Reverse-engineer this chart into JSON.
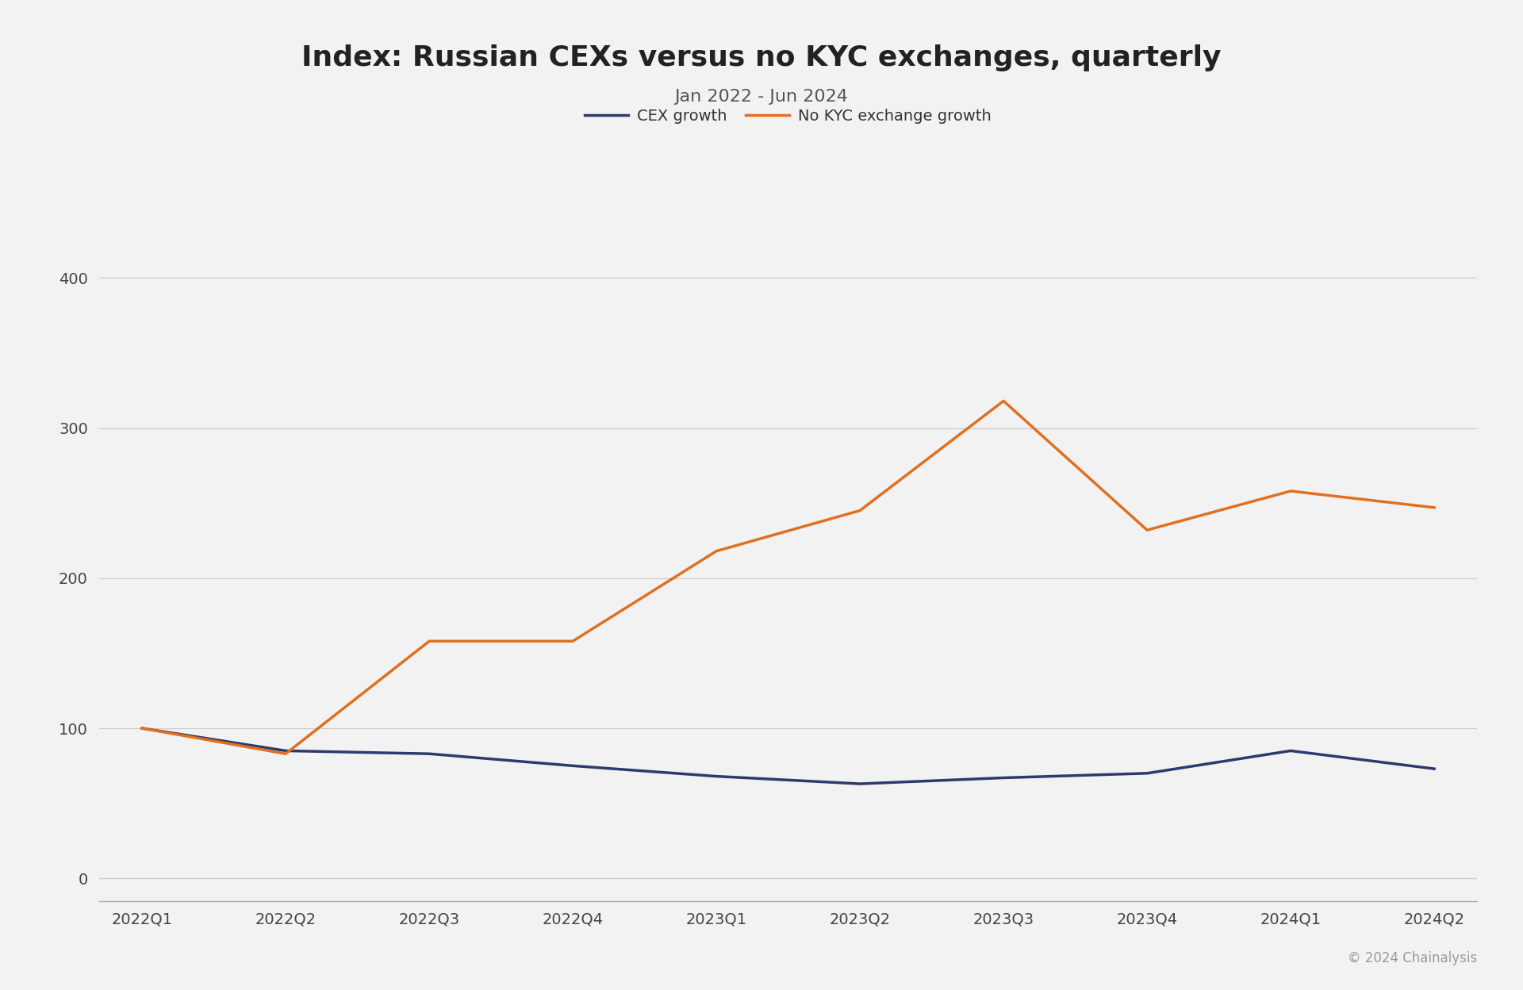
{
  "title": "Index: Russian CEXs versus no KYC exchanges, quarterly",
  "subtitle": "Jan 2022 - Jun 2024",
  "categories": [
    "2022Q1",
    "2022Q2",
    "2022Q3",
    "2022Q4",
    "2023Q1",
    "2023Q2",
    "2023Q3",
    "2023Q4",
    "2024Q1",
    "2024Q2"
  ],
  "cex_growth": [
    100,
    85,
    83,
    75,
    68,
    63,
    67,
    70,
    85,
    73
  ],
  "no_kyc_growth": [
    100,
    83,
    158,
    158,
    218,
    245,
    318,
    232,
    258,
    247
  ],
  "cex_color": "#2e3a6e",
  "no_kyc_color": "#e07020",
  "background_color": "#f2f2f2",
  "grid_color": "#cccccc",
  "yticks": [
    0,
    100,
    200,
    300,
    400
  ],
  "ylim": [
    -15,
    440
  ],
  "legend_cex": "CEX growth",
  "legend_no_kyc": "No KYC exchange growth",
  "copyright": "© 2024 Chainalysis",
  "title_fontsize": 26,
  "subtitle_fontsize": 16,
  "axis_fontsize": 14,
  "legend_fontsize": 14,
  "copyright_fontsize": 12,
  "line_width": 2.5
}
